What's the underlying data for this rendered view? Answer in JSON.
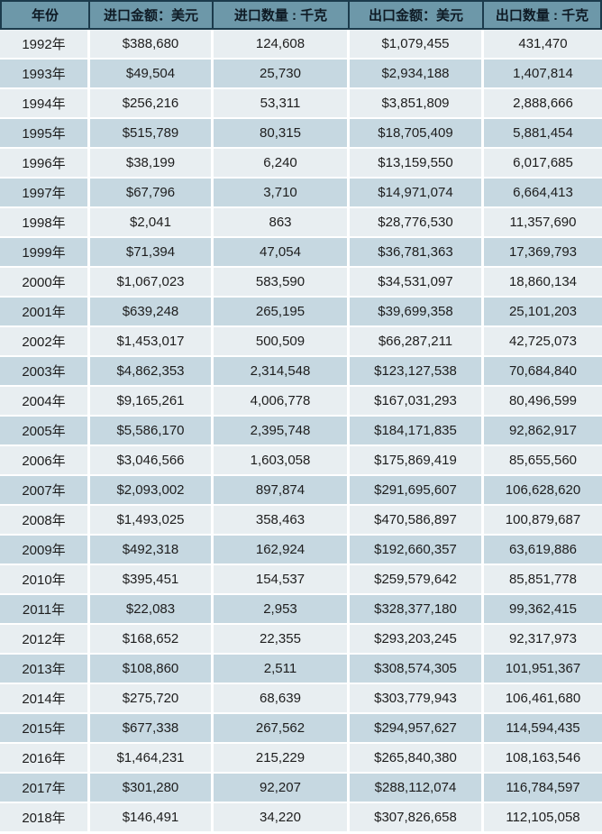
{
  "colors": {
    "header_bg": "#6d98a9",
    "header_border": "#1c3b4c",
    "header_text": "#0e1a24",
    "row_light": "#e8eef1",
    "row_blue": "#c6d8e1",
    "body_text": "#1d1d1d"
  },
  "chart_data": {
    "type": "table",
    "title": "",
    "columns": [
      "年份",
      "进口金额：美元",
      "进口数量 : 千克",
      "出口金额：美元",
      "出口数量 : 千克"
    ],
    "rows": [
      [
        "1992年",
        "$388,680",
        "124,608",
        "$1,079,455",
        "431,470"
      ],
      [
        "1993年",
        "$49,504",
        "25,730",
        "$2,934,188",
        "1,407,814"
      ],
      [
        "1994年",
        "$256,216",
        "53,311",
        "$3,851,809",
        "2,888,666"
      ],
      [
        "1995年",
        "$515,789",
        "80,315",
        "$18,705,409",
        "5,881,454"
      ],
      [
        "1996年",
        "$38,199",
        "6,240",
        "$13,159,550",
        "6,017,685"
      ],
      [
        "1997年",
        "$67,796",
        "3,710",
        "$14,971,074",
        "6,664,413"
      ],
      [
        "1998年",
        "$2,041",
        "863",
        "$28,776,530",
        "11,357,690"
      ],
      [
        "1999年",
        "$71,394",
        "47,054",
        "$36,781,363",
        "17,369,793"
      ],
      [
        "2000年",
        "$1,067,023",
        "583,590",
        "$34,531,097",
        "18,860,134"
      ],
      [
        "2001年",
        "$639,248",
        "265,195",
        "$39,699,358",
        "25,101,203"
      ],
      [
        "2002年",
        "$1,453,017",
        "500,509",
        "$66,287,211",
        "42,725,073"
      ],
      [
        "2003年",
        "$4,862,353",
        "2,314,548",
        "$123,127,538",
        "70,684,840"
      ],
      [
        "2004年",
        "$9,165,261",
        "4,006,778",
        "$167,031,293",
        "80,496,599"
      ],
      [
        "2005年",
        "$5,586,170",
        "2,395,748",
        "$184,171,835",
        "92,862,917"
      ],
      [
        "2006年",
        "$3,046,566",
        "1,603,058",
        "$175,869,419",
        "85,655,560"
      ],
      [
        "2007年",
        "$2,093,002",
        "897,874",
        "$291,695,607",
        "106,628,620"
      ],
      [
        "2008年",
        "$1,493,025",
        "358,463",
        "$470,586,897",
        "100,879,687"
      ],
      [
        "2009年",
        "$492,318",
        "162,924",
        "$192,660,357",
        "63,619,886"
      ],
      [
        "2010年",
        "$395,451",
        "154,537",
        "$259,579,642",
        "85,851,778"
      ],
      [
        "2011年",
        "$22,083",
        "2,953",
        "$328,377,180",
        "99,362,415"
      ],
      [
        "2012年",
        "$168,652",
        "22,355",
        "$293,203,245",
        "92,317,973"
      ],
      [
        "2013年",
        "$108,860",
        "2,511",
        "$308,574,305",
        "101,951,367"
      ],
      [
        "2014年",
        "$275,720",
        "68,639",
        "$303,779,943",
        "106,461,680"
      ],
      [
        "2015年",
        "$677,338",
        "267,562",
        "$294,957,627",
        "114,594,435"
      ],
      [
        "2016年",
        "$1,464,231",
        "215,229",
        "$265,840,380",
        "108,163,546"
      ],
      [
        "2017年",
        "$301,280",
        "92,207",
        "$288,112,074",
        "116,784,597"
      ],
      [
        "2018年",
        "$146,491",
        "34,220",
        "$307,826,658",
        "112,105,058"
      ]
    ]
  }
}
